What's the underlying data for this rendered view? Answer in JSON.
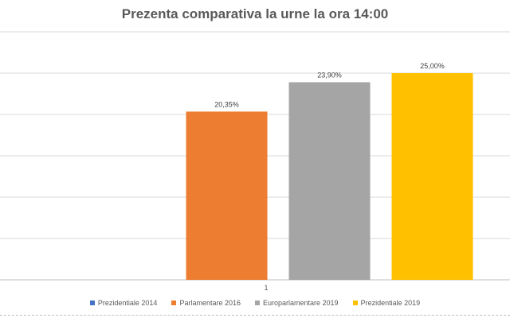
{
  "chart_data": {
    "type": "bar",
    "title": "Prezenta comparativa la urne la ora 14:00",
    "categories": [
      "1"
    ],
    "series": [
      {
        "name": "Prezidentiale 2014",
        "values": [
          0
        ],
        "label": "",
        "color": "#4472C4"
      },
      {
        "name": "Parlamentare 2016",
        "values": [
          20.35
        ],
        "label": "20,35%",
        "color": "#ED7D31"
      },
      {
        "name": "Europarlamentare 2019",
        "values": [
          23.9
        ],
        "label": "23,90%",
        "color": "#A5A5A5"
      },
      {
        "name": "Prezidentiale 2019",
        "values": [
          25.0
        ],
        "label": "25,00%",
        "color": "#FFC000"
      }
    ],
    "ylim": [
      0,
      30
    ],
    "grid": true,
    "legend_position": "bottom",
    "xlabel": "",
    "ylabel": ""
  }
}
